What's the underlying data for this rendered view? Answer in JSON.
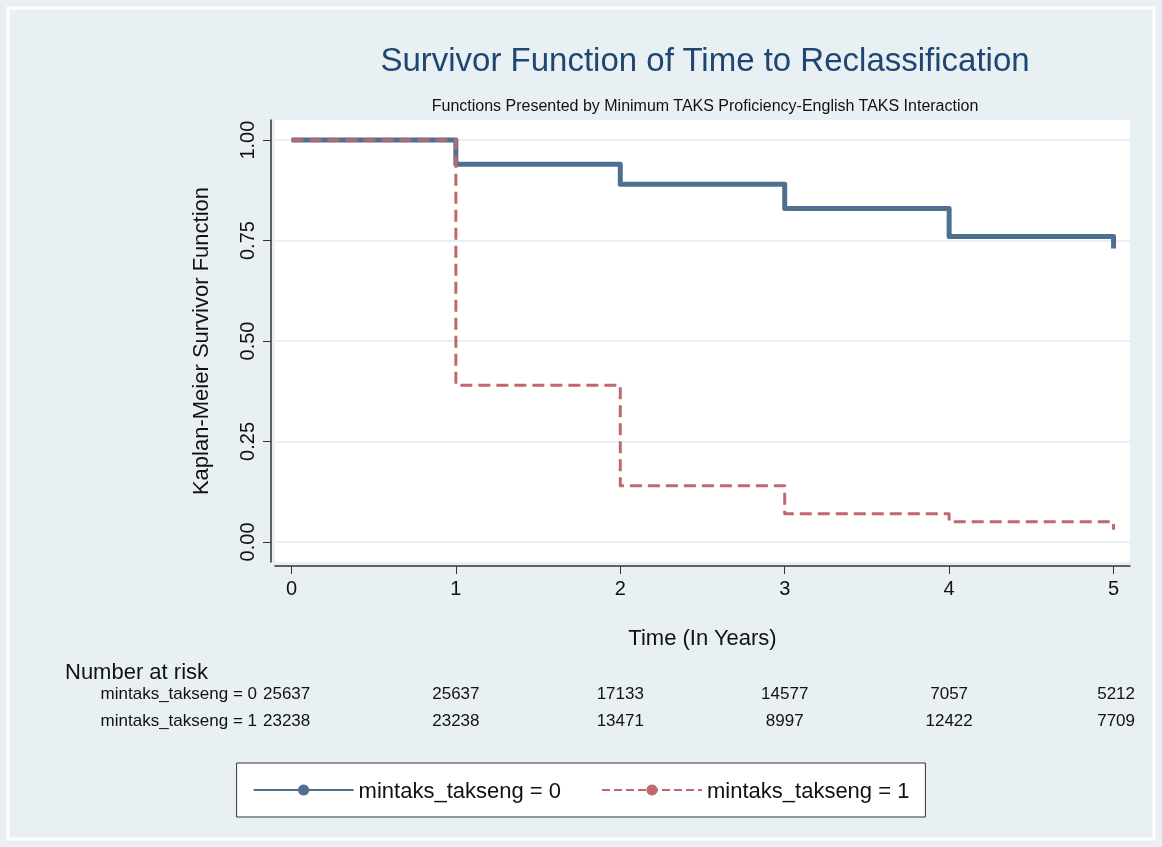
{
  "chart_data": {
    "type": "step",
    "title": "Survivor Function of Time to Reclassification",
    "subtitle": "Functions Presented by Minimum TAKS Proficiency-English TAKS Interaction",
    "xlabel": "Time (In Years)",
    "ylabel": "Kaplan-Meier Survivor Function",
    "x": [
      0,
      1,
      2,
      3,
      4,
      5
    ],
    "series": [
      {
        "name": "mintaks_takseng = 0",
        "color": "#4e6f92",
        "line_style": "solid",
        "values": [
          1.0,
          0.94,
          0.89,
          0.83,
          0.76,
          0.73
        ]
      },
      {
        "name": "mintaks_takseng = 1",
        "color": "#c0686d",
        "line_style": "dashed",
        "values": [
          1.0,
          0.39,
          0.14,
          0.07,
          0.05,
          0.03
        ]
      }
    ],
    "xlim": [
      -0.1,
      5.1
    ],
    "xticks": [
      0,
      1,
      2,
      3,
      4,
      5
    ],
    "ylim": [
      -0.05,
      1.05
    ],
    "yticks": [
      {
        "value": 0,
        "label": "0.00"
      },
      {
        "value": 0.25,
        "label": "0.25"
      },
      {
        "value": 0.5,
        "label": "0.50"
      },
      {
        "value": 0.75,
        "label": "0.75"
      },
      {
        "value": 1,
        "label": "1.00"
      }
    ],
    "grid": "y",
    "legend": "bottom",
    "marker": "none",
    "annotations": [
      "Number at risk",
      "mintaks_takseng = 0",
      "25637",
      "25637",
      "17133",
      "14577",
      "7057",
      "5212",
      "mintaks_takseng = 1",
      "23238",
      "23238",
      "13471",
      "8997",
      "12422",
      "7709"
    ]
  }
}
